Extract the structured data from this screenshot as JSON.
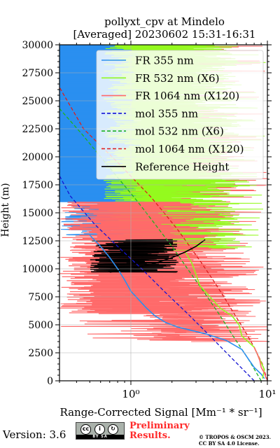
{
  "figure": {
    "title_line1": "pollyxt_cpv at Mindelo",
    "title_line2": "[Averaged] 20230602 15:31-16:31",
    "version": "Version: 3.6",
    "license_badge": {
      "icons": [
        "cc-icon",
        "by-icon",
        "sa-icon"
      ],
      "text": "BY SA"
    },
    "preliminary_line1": "Preliminary",
    "preliminary_line2": "Results.",
    "credit_line1": "© TROPOS & OSCM 2023.",
    "credit_line2": "CC BY SA 4.0 License."
  },
  "chart_data": {
    "type": "line",
    "xlabel": "Range-Corrected Signal [Mm⁻¹ * sr⁻¹]",
    "ylabel": "Height (m)",
    "xscale": "log",
    "xlim": [
      0.3,
      10
    ],
    "ylim": [
      0,
      30000
    ],
    "xticks": [
      1,
      10
    ],
    "xtick_labels": [
      "10⁰",
      "10¹"
    ],
    "yticks": [
      0,
      2500,
      5000,
      7500,
      10000,
      12500,
      15000,
      17500,
      20000,
      22500,
      25000,
      27500,
      30000
    ],
    "ytick_labels": [
      "0",
      "2500",
      "5000",
      "7500",
      "10000",
      "12500",
      "15000",
      "17500",
      "20000",
      "22500",
      "25000",
      "27500",
      "30000"
    ],
    "grid": true,
    "legend_position": "top-right",
    "colors": {
      "fr355": "#2a8ff0",
      "fr532": "#94fa1e",
      "fr1064": "#ff6a6a",
      "mol355": "#1414d2",
      "mol532": "#1eb41e",
      "mol1064": "#dc1e1e",
      "ref": "#000000"
    },
    "legend": [
      {
        "label": "FR 355 nm",
        "color": "#2a8ff0",
        "style": "solid"
      },
      {
        "label": "FR 532 nm (X6)",
        "color": "#94fa1e",
        "style": "solid"
      },
      {
        "label": "FR 1064 nm (X120)",
        "color": "#ff6a6a",
        "style": "solid"
      },
      {
        "label": "mol 355 nm",
        "color": "#1414d2",
        "style": "dashed"
      },
      {
        "label": "mol 532 nm (X6)",
        "color": "#1eb41e",
        "style": "dashed"
      },
      {
        "label": "mol 1064 nm (X120)",
        "color": "#dc1e1e",
        "style": "dashed"
      },
      {
        "label": "Reference Height",
        "color": "#000000",
        "style": "solid"
      }
    ],
    "series": [
      {
        "key": "mol355",
        "name": "mol 355 nm",
        "style": "dashed",
        "x": [
          8.0,
          5.5,
          3.8,
          2.6,
          1.75,
          1.2,
          0.8,
          0.54,
          0.36,
          0.3
        ],
        "y": [
          0,
          2000,
          4000,
          6000,
          8000,
          10000,
          12000,
          14000,
          16500,
          18300
        ]
      },
      {
        "key": "mol532",
        "name": "mol 532 nm (X6)",
        "style": "dashed",
        "x": [
          9.0,
          7.2,
          5.6,
          4.4,
          3.4,
          2.6,
          2.0,
          1.5,
          1.12,
          0.82,
          0.6,
          0.44,
          0.3
        ],
        "y": [
          0,
          2000,
          4000,
          6000,
          8000,
          10000,
          12000,
          14000,
          16000,
          18000,
          20000,
          22000,
          24300
        ]
      },
      {
        "key": "mol1064",
        "name": "mol 1064 nm (X120)",
        "style": "dashed",
        "x": [
          10.0,
          9.2,
          8.0,
          6.8,
          5.7,
          4.8,
          4.0,
          3.3,
          2.7,
          2.2,
          1.75,
          1.38,
          1.05,
          0.8,
          0.6,
          0.45,
          0.3
        ],
        "y": [
          0,
          1500,
          3000,
          4500,
          6000,
          7500,
          9000,
          10500,
          12000,
          13500,
          15000,
          16500,
          18000,
          19500,
          21000,
          22500,
          26200
        ]
      },
      {
        "key": "fr355",
        "name": "FR 355 nm",
        "style": "solid",
        "x": [
          9.5,
          9.0,
          8.0,
          7.2,
          6.5,
          5.0,
          3.5,
          2.2,
          1.8,
          1.5,
          1.3,
          1.15,
          1.0,
          0.95,
          0.9,
          0.8,
          0.7,
          0.6,
          0.5
        ],
        "y": [
          200,
          600,
          1200,
          2000,
          2800,
          3600,
          4200,
          4800,
          5200,
          5800,
          6500,
          7200,
          8000,
          8500,
          9000,
          10000,
          11000,
          12000,
          13000
        ]
      },
      {
        "key": "fr532",
        "name": "FR 532 nm (X6)",
        "style": "solid",
        "x": [
          9.2,
          9.5,
          8.0,
          6.5,
          6.2,
          5.5,
          4.5,
          3.8,
          3.2,
          3.0,
          2.8,
          2.5
        ],
        "y": [
          200,
          1000,
          3000,
          4000,
          5000,
          5800,
          6500,
          7500,
          8500,
          9500,
          10500,
          11500
        ]
      },
      {
        "key": "fr1064",
        "name": "FR 1064 nm (X120)",
        "style": "solid",
        "x": [
          9.8,
          9.5,
          9.0,
          8.8,
          8.5,
          8.0
        ],
        "y": [
          200,
          700,
          1200,
          1800,
          2300,
          3000
        ]
      },
      {
        "key": "ref",
        "name": "Reference Height",
        "style": "solid",
        "x": [
          0.7,
          1.0,
          1.5,
          2.0,
          2.5,
          3.0,
          3.5
        ],
        "y": [
          9700,
          10000,
          10500,
          11000,
          11500,
          12000,
          12600
        ]
      }
    ]
  }
}
